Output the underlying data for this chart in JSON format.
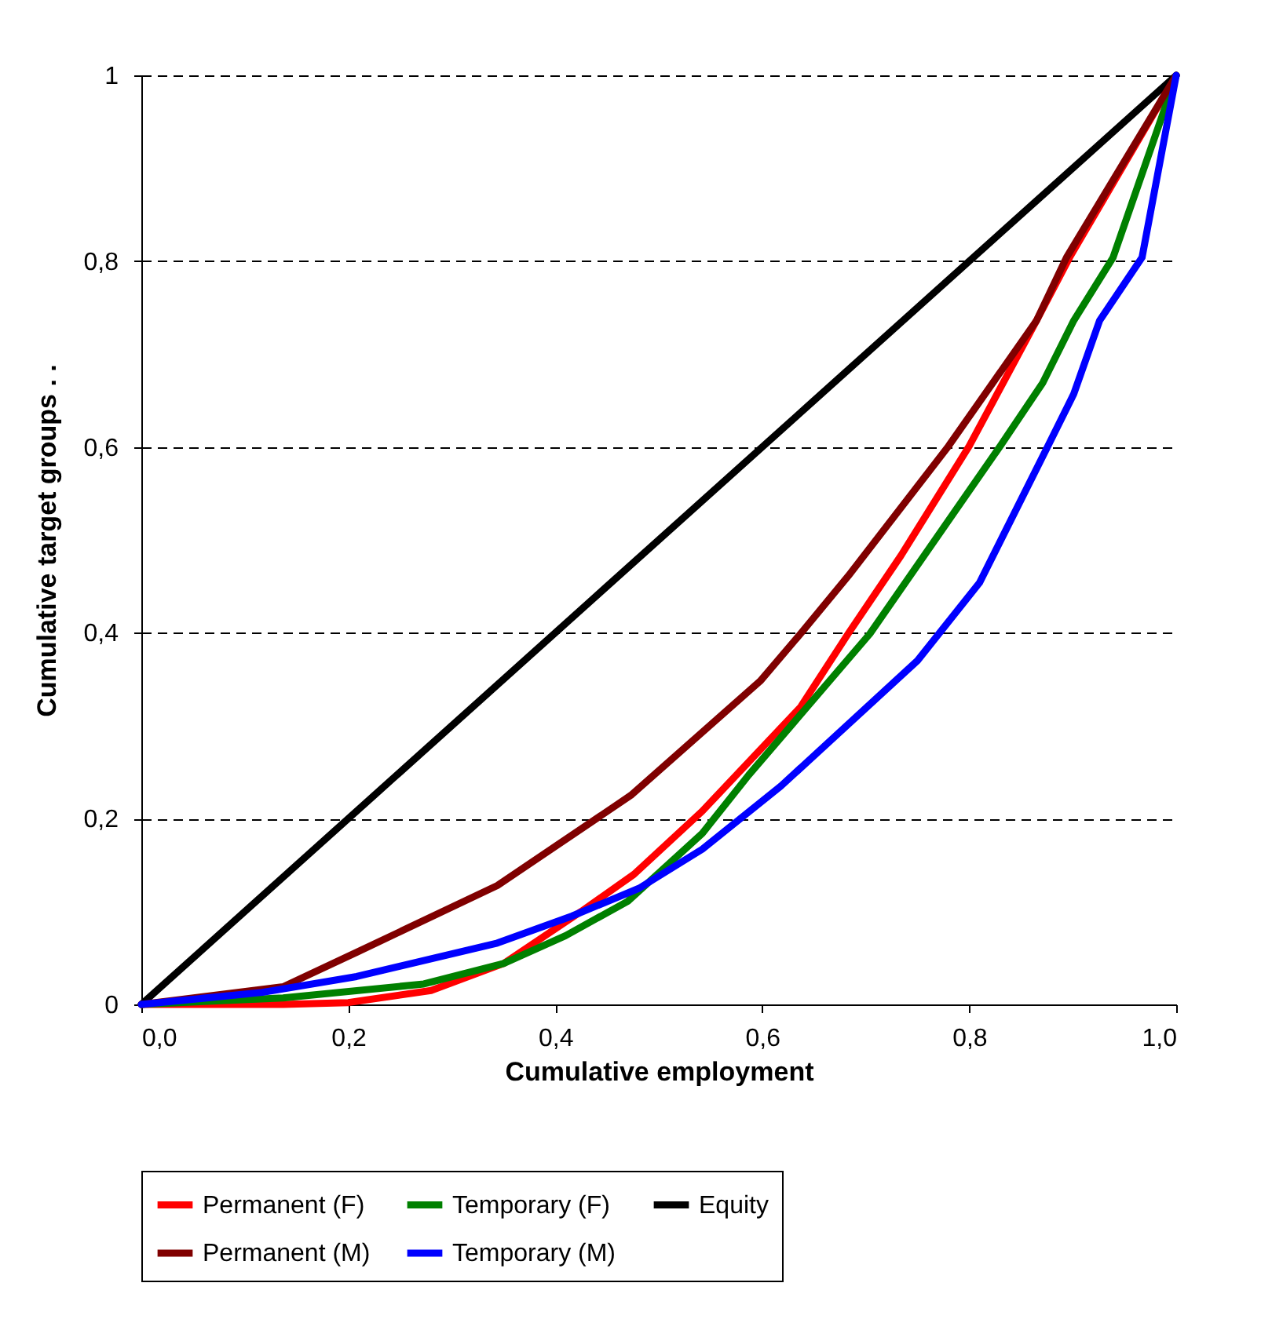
{
  "chart_data": {
    "type": "line",
    "xlabel": "Cumulative employment",
    "ylabel": "Cumulative target groups . .",
    "xlim": [
      0,
      1
    ],
    "ylim": [
      0,
      1
    ],
    "xticks": [
      {
        "value": 0,
        "label": "0,0"
      },
      {
        "value": 0.2,
        "label": "0,2"
      },
      {
        "value": 0.4,
        "label": "0,4"
      },
      {
        "value": 0.6,
        "label": "0,6"
      },
      {
        "value": 0.8,
        "label": "0,8"
      },
      {
        "value": 1,
        "label": "1,0"
      }
    ],
    "yticks": [
      0,
      {
        "value": 0.2,
        "label": "0,2"
      },
      {
        "value": 0.4,
        "label": "0,4"
      },
      {
        "value": 0.6,
        "label": "0,6"
      },
      {
        "value": 0.8,
        "label": "0,8"
      },
      1
    ],
    "grid": "y",
    "legend": "bottom",
    "marker": "none",
    "series": [
      {
        "name": "Permanent (F)",
        "color": "#ff0000",
        "x": [
          0,
          0.137,
          0.2,
          0.28,
          0.35,
          0.425,
          0.476,
          0.542,
          0.637,
          0.683,
          0.734,
          0.8,
          0.865,
          0.897,
          1
        ],
        "values": [
          0,
          0,
          0.002,
          0.015,
          0.044,
          0.1,
          0.14,
          0.208,
          0.32,
          0.399,
          0.483,
          0.601,
          0.736,
          0.804,
          1
        ]
      },
      {
        "name": "Temporary (F)",
        "color": "#008000",
        "x": [
          0,
          0.137,
          0.273,
          0.35,
          0.41,
          0.47,
          0.542,
          0.587,
          0.704,
          0.83,
          0.871,
          0.901,
          0.939,
          1
        ],
        "values": [
          0,
          0.007,
          0.022,
          0.044,
          0.074,
          0.111,
          0.184,
          0.247,
          0.399,
          0.601,
          0.669,
          0.736,
          0.804,
          1
        ]
      },
      {
        "name": "Equity",
        "color": "#000000",
        "x": [
          0,
          1
        ],
        "values": [
          0,
          1
        ]
      },
      {
        "name": "Permanent (M)",
        "color": "#800000",
        "x": [
          0,
          0.137,
          0.208,
          0.344,
          0.473,
          0.598,
          0.637,
          0.683,
          0.78,
          0.865,
          0.894,
          1
        ],
        "values": [
          0,
          0.019,
          0.056,
          0.128,
          0.225,
          0.348,
          0.399,
          0.461,
          0.601,
          0.736,
          0.804,
          1
        ]
      },
      {
        "name": "Temporary (M)",
        "color": "#0000ff",
        "x": [
          0,
          0.117,
          0.208,
          0.344,
          0.416,
          0.481,
          0.542,
          0.618,
          0.75,
          0.81,
          0.876,
          0.901,
          0.926,
          0.967,
          1
        ],
        "values": [
          0,
          0.013,
          0.03,
          0.066,
          0.095,
          0.125,
          0.167,
          0.235,
          0.37,
          0.454,
          0.601,
          0.657,
          0.736,
          0.804,
          1
        ]
      }
    ]
  }
}
